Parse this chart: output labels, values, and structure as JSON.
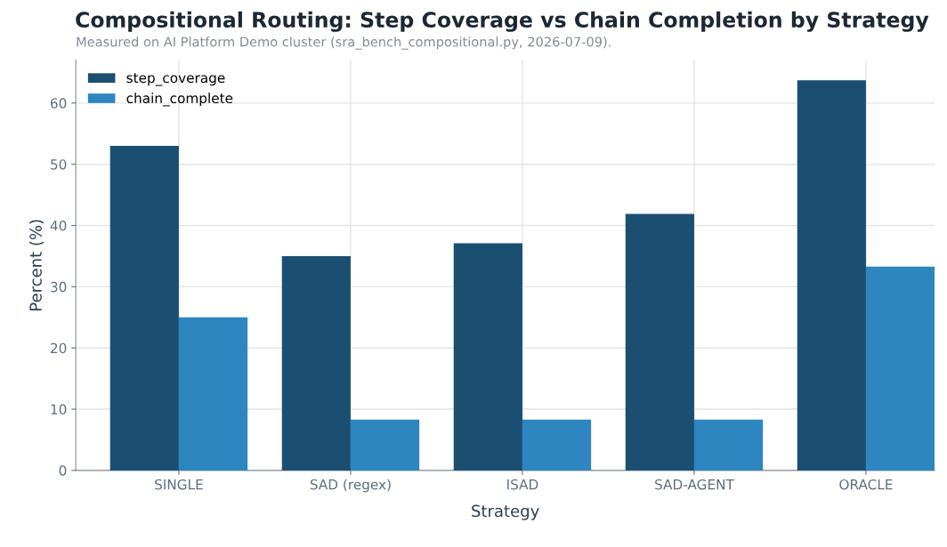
{
  "chart_data": {
    "type": "bar",
    "title": "Compositional Routing: Step Coverage vs Chain Completion by Strategy",
    "subtitle": "Measured on AI Platform Demo cluster (sra_bench_compositional.py, 2026-07-09).",
    "xlabel": "Strategy",
    "ylabel": "Percent (%)",
    "categories": [
      "SINGLE",
      "SAD (regex)",
      "ISAD",
      "SAD-AGENT",
      "ORACLE"
    ],
    "series": [
      {
        "name": "step_coverage",
        "color": "#1b4f72",
        "values": [
          53.0,
          35.0,
          37.1,
          41.9,
          63.7
        ]
      },
      {
        "name": "chain_complete",
        "color": "#2e86c1",
        "values": [
          25.0,
          8.3,
          8.3,
          8.3,
          33.3
        ]
      }
    ],
    "ylim": [
      0,
      67
    ],
    "yticks": [
      0,
      10,
      20,
      30,
      40,
      50,
      60
    ],
    "grid": true,
    "legend": "top left"
  }
}
